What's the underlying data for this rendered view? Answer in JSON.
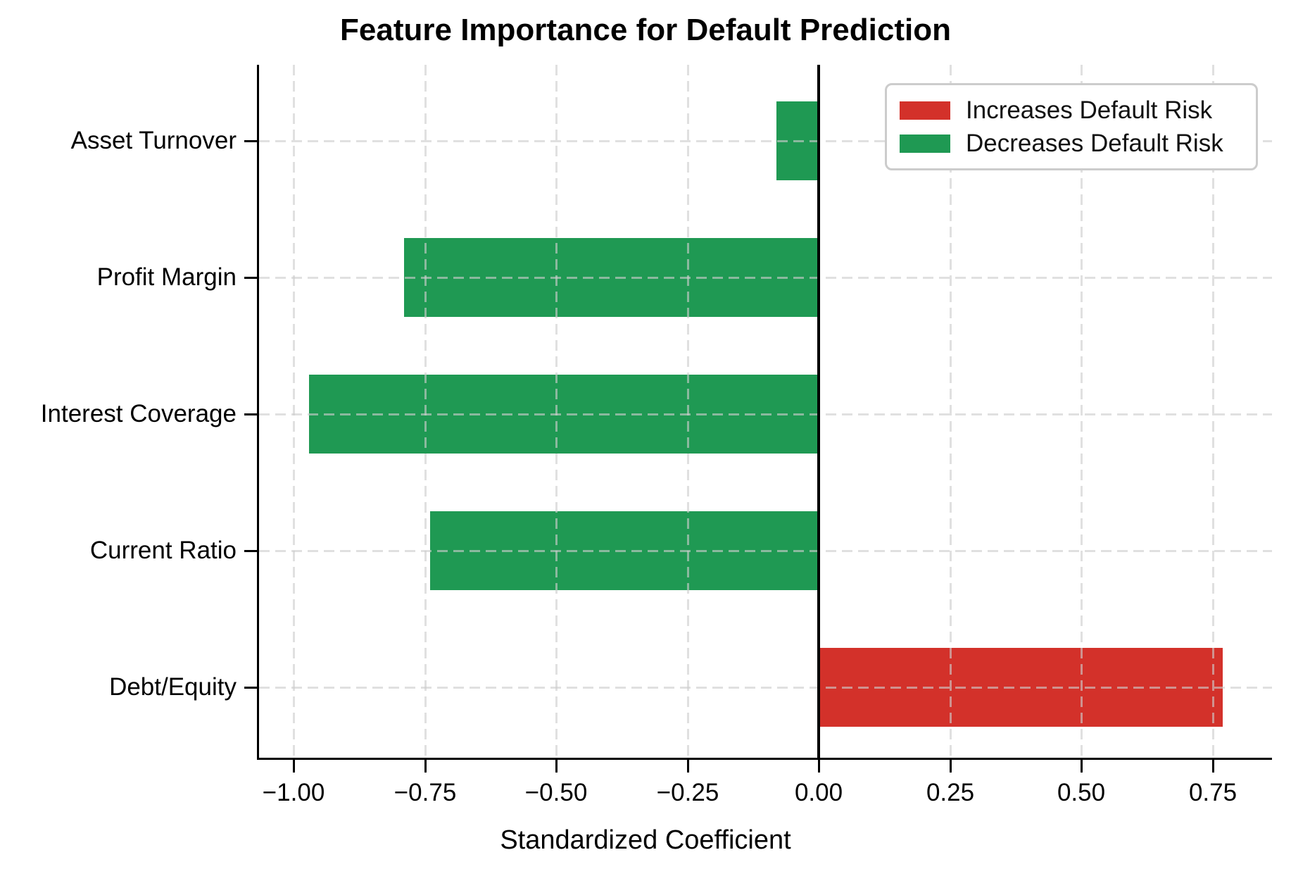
{
  "title": "Feature Importance for Default Prediction",
  "x_axis_title": "Standardized Coefficient",
  "colors": {
    "increase_risk": "#d3312a",
    "decrease_risk": "#1f9953",
    "zero_line": "#000000",
    "grid": "#cdcdcd"
  },
  "legend": {
    "items": [
      {
        "label": "Increases Default Risk",
        "color_key": "increase_risk"
      },
      {
        "label": "Decreases Default Risk",
        "color_key": "decrease_risk"
      }
    ]
  },
  "chart_data": {
    "type": "bar",
    "orientation": "horizontal",
    "title": "Feature Importance for Default Prediction",
    "xlabel": "Standardized Coefficient",
    "ylabel": "",
    "categories": [
      "Asset Turnover",
      "Profit Margin",
      "Interest Coverage",
      "Current Ratio",
      "Debt/Equity"
    ],
    "values": [
      -0.08,
      -0.79,
      -0.97,
      -0.74,
      0.77
    ],
    "bar_colors_rule": "positive values red (increase risk), negative values green (decrease risk)",
    "xlim": [
      -1.066,
      0.863
    ],
    "xticks": [
      -1.0,
      -0.75,
      -0.5,
      -0.25,
      0.0,
      0.25,
      0.5,
      0.75
    ],
    "xtick_labels": [
      "−1.00",
      "−0.75",
      "−0.50",
      "−0.25",
      "0.00",
      "0.25",
      "0.50",
      "0.75"
    ],
    "grid": true,
    "grid_style": "dashed",
    "legend_position": "upper right",
    "legend_entries": [
      "Increases Default Risk",
      "Decreases Default Risk"
    ]
  }
}
